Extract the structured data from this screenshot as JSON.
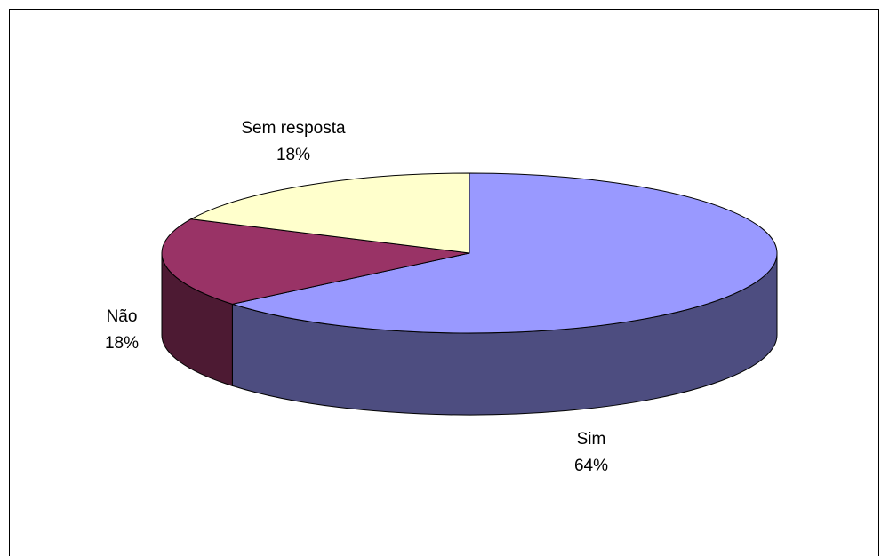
{
  "chart_data": {
    "type": "pie3d",
    "categories": [
      "Sim",
      "Não",
      "Sem resposta"
    ],
    "values": [
      64,
      18,
      18
    ],
    "value_labels": [
      "64%",
      "18%",
      "18%"
    ],
    "colors": [
      "#9999ff",
      "#993366",
      "#ffffcc"
    ]
  }
}
